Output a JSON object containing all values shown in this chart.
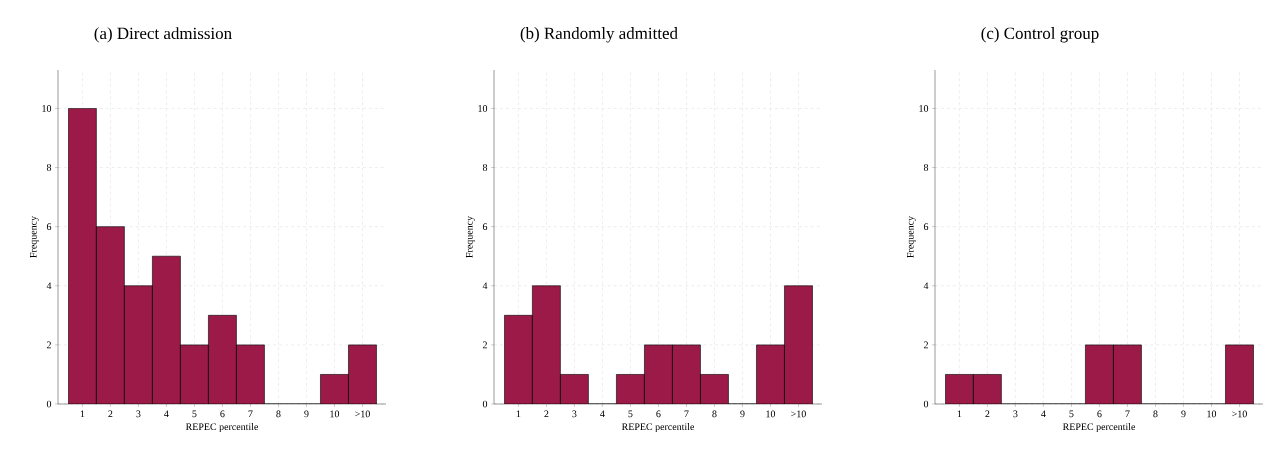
{
  "chart_data": [
    {
      "type": "bar",
      "title": "(a) Direct admission",
      "xlabel": "REPEC percentile",
      "ylabel": "Frequency",
      "categories": [
        "1",
        "2",
        "3",
        "4",
        "5",
        "6",
        "7",
        "8",
        "9",
        "10",
        ">10"
      ],
      "values": [
        10,
        6,
        4,
        5,
        2,
        3,
        2,
        0,
        0,
        1,
        2
      ],
      "color": "#9b1a47",
      "ylim": [
        0,
        11.3
      ],
      "yticks": [
        0,
        2,
        4,
        6,
        8,
        10
      ],
      "grid": true
    },
    {
      "type": "bar",
      "title": "(b) Randomly admitted",
      "xlabel": "REPEC percentile",
      "ylabel": "Frequency",
      "categories": [
        "1",
        "2",
        "3",
        "4",
        "5",
        "6",
        "7",
        "8",
        "9",
        "10",
        ">10"
      ],
      "values": [
        3,
        4,
        1,
        0,
        1,
        2,
        2,
        1,
        0,
        2,
        4
      ],
      "color": "#9b1a47",
      "ylim": [
        0,
        11.3
      ],
      "yticks": [
        0,
        2,
        4,
        6,
        8,
        10
      ],
      "grid": true
    },
    {
      "type": "bar",
      "title": "(c) Control group",
      "xlabel": "REPEC percentile",
      "ylabel": "Frequency",
      "categories": [
        "1",
        "2",
        "3",
        "4",
        "5",
        "6",
        "7",
        "8",
        "9",
        "10",
        ">10"
      ],
      "values": [
        1,
        1,
        0,
        0,
        0,
        2,
        2,
        0,
        0,
        0,
        2
      ],
      "color": "#9b1a47",
      "ylim": [
        0,
        11.3
      ],
      "yticks": [
        0,
        2,
        4,
        6,
        8,
        10
      ],
      "grid": true
    }
  ]
}
